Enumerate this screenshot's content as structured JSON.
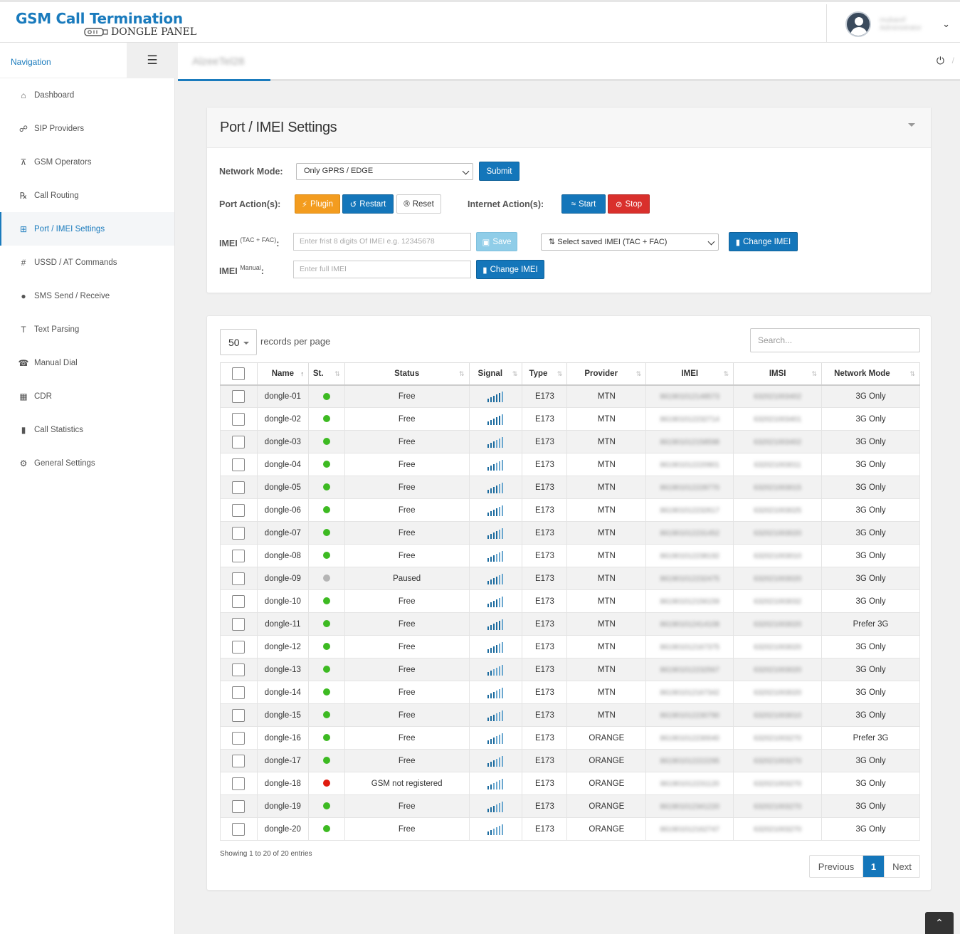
{
  "brand": {
    "title": "GSM Call Termination",
    "subtitle": "DONGLE PANEL"
  },
  "user": {
    "name": "mubaref",
    "role": "Administrator"
  },
  "nav": {
    "heading": "Navigation",
    "items": [
      {
        "label": "Dashboard",
        "icon": "home-icon",
        "glyph": "⌂"
      },
      {
        "label": "SIP Providers",
        "icon": "sip-icon",
        "glyph": "☍"
      },
      {
        "label": "GSM Operators",
        "icon": "antenna-icon",
        "glyph": "⊼"
      },
      {
        "label": "Call Routing",
        "icon": "routing-icon",
        "glyph": "℞"
      },
      {
        "label": "Port / IMEI Settings",
        "icon": "sitemap-icon",
        "glyph": "⊞"
      },
      {
        "label": "USSD / AT Commands",
        "icon": "hash-icon",
        "glyph": "#"
      },
      {
        "label": "SMS Send / Receive",
        "icon": "chat-icon",
        "glyph": "●"
      },
      {
        "label": "Text Parsing",
        "icon": "text-icon",
        "glyph": "T"
      },
      {
        "label": "Manual Dial",
        "icon": "dial-icon",
        "glyph": "☎"
      },
      {
        "label": "CDR",
        "icon": "table-icon",
        "glyph": "▦"
      },
      {
        "label": "Call Statistics",
        "icon": "chart-icon",
        "glyph": "▮"
      },
      {
        "label": "General Settings",
        "icon": "gears-icon",
        "glyph": "⚙"
      }
    ]
  },
  "tab": {
    "label": "AlzeeTel28"
  },
  "settings": {
    "title": "Port / IMEI Settings",
    "network_mode_label": "Network Mode:",
    "network_mode_value": "Only GPRS / EDGE",
    "submit_label": "Submit",
    "port_actions_label": "Port Action(s):",
    "plugin_label": "Plugin",
    "restart_label": "Restart",
    "reset_label": "Reset",
    "internet_actions_label": "Internet Action(s):",
    "start_label": "Start",
    "stop_label": "Stop",
    "imei_label": "IMEI",
    "imei_tac_sup": "(TAC + FAC)",
    "imei_manual_sup": "Manual",
    "imei_tac_placeholder": "Enter frist 8 digits Of IMEI e.g. 12345678",
    "save_label": "Save",
    "saved_imei_select": "Select saved IMEI (TAC + FAC)",
    "change_imei_label": "Change IMEI",
    "imei_full_placeholder": "Enter full IMEI"
  },
  "table": {
    "per_page": "50",
    "per_page_label": "records per page",
    "search_placeholder": "Search...",
    "columns": [
      "Name",
      "St.",
      "Status",
      "Signal",
      "Type",
      "Provider",
      "IMEI",
      "IMSI",
      "Network Mode"
    ],
    "rows": [
      {
        "name": "dongle-01",
        "st": "green",
        "status": "Free",
        "signal": 5,
        "type": "E173",
        "provider": "MTN",
        "imei": "861901012148573",
        "imsi": "632021003402",
        "mode": "3G Only"
      },
      {
        "name": "dongle-02",
        "st": "green",
        "status": "Free",
        "signal": 5,
        "type": "E173",
        "provider": "MTN",
        "imei": "861901012232714",
        "imsi": "632021003401",
        "mode": "3G Only"
      },
      {
        "name": "dongle-03",
        "st": "green",
        "status": "Free",
        "signal": 3,
        "type": "E173",
        "provider": "MTN",
        "imei": "861901012158598",
        "imsi": "632021003402",
        "mode": "3G Only"
      },
      {
        "name": "dongle-04",
        "st": "green",
        "status": "Free",
        "signal": 3,
        "type": "E173",
        "provider": "MTN",
        "imei": "861901012220901",
        "imsi": "632021003011",
        "mode": "3G Only"
      },
      {
        "name": "dongle-05",
        "st": "green",
        "status": "Free",
        "signal": 4,
        "type": "E173",
        "provider": "MTN",
        "imei": "861901012228770",
        "imsi": "632021003015",
        "mode": "3G Only"
      },
      {
        "name": "dongle-06",
        "st": "green",
        "status": "Free",
        "signal": 4,
        "type": "E173",
        "provider": "MTN",
        "imei": "861901012232617",
        "imsi": "632021003025",
        "mode": "3G Only"
      },
      {
        "name": "dongle-07",
        "st": "green",
        "status": "Free",
        "signal": 4,
        "type": "E173",
        "provider": "MTN",
        "imei": "861901012231452",
        "imsi": "632021003020",
        "mode": "3G Only"
      },
      {
        "name": "dongle-08",
        "st": "green",
        "status": "Free",
        "signal": 3,
        "type": "E173",
        "provider": "MTN",
        "imei": "861901012238192",
        "imsi": "632021003010",
        "mode": "3G Only"
      },
      {
        "name": "dongle-09",
        "st": "gray",
        "status": "Paused",
        "signal": 4,
        "type": "E173",
        "provider": "MTN",
        "imei": "861901012232475",
        "imsi": "632021003020",
        "mode": "3G Only"
      },
      {
        "name": "dongle-10",
        "st": "green",
        "status": "Free",
        "signal": 4,
        "type": "E173",
        "provider": "MTN",
        "imei": "861901012156159",
        "imsi": "632021003032",
        "mode": "3G Only"
      },
      {
        "name": "dongle-11",
        "st": "green",
        "status": "Free",
        "signal": 5,
        "type": "E173",
        "provider": "MTN",
        "imei": "861901012414108",
        "imsi": "632021003020",
        "mode": "Prefer 3G"
      },
      {
        "name": "dongle-12",
        "st": "green",
        "status": "Free",
        "signal": 4,
        "type": "E173",
        "provider": "MTN",
        "imei": "861901012167375",
        "imsi": "632021003020",
        "mode": "3G Only"
      },
      {
        "name": "dongle-13",
        "st": "green",
        "status": "Free",
        "signal": 2,
        "type": "E173",
        "provider": "MTN",
        "imei": "861901012232567",
        "imsi": "632021003020",
        "mode": "3G Only"
      },
      {
        "name": "dongle-14",
        "st": "green",
        "status": "Free",
        "signal": 3,
        "type": "E173",
        "provider": "MTN",
        "imei": "861901012167342",
        "imsi": "632021003020",
        "mode": "3G Only"
      },
      {
        "name": "dongle-15",
        "st": "green",
        "status": "Free",
        "signal": 3,
        "type": "E173",
        "provider": "MTN",
        "imei": "861901012230790",
        "imsi": "632021003010",
        "mode": "3G Only"
      },
      {
        "name": "dongle-16",
        "st": "green",
        "status": "Free",
        "signal": 3,
        "type": "E173",
        "provider": "ORANGE",
        "imei": "861901012230040",
        "imsi": "632021003270",
        "mode": "Prefer 3G"
      },
      {
        "name": "dongle-17",
        "st": "green",
        "status": "Free",
        "signal": 3,
        "type": "E173",
        "provider": "ORANGE",
        "imei": "861901012222295",
        "imsi": "632021003270",
        "mode": "3G Only"
      },
      {
        "name": "dongle-18",
        "st": "red",
        "status": "GSM not registered",
        "signal": 2,
        "type": "E173",
        "provider": "ORANGE",
        "imei": "861901012231120",
        "imsi": "632021003270",
        "mode": "3G Only"
      },
      {
        "name": "dongle-19",
        "st": "green",
        "status": "Free",
        "signal": 3,
        "type": "E173",
        "provider": "ORANGE",
        "imei": "861901012341220",
        "imsi": "632021003270",
        "mode": "3G Only"
      },
      {
        "name": "dongle-20",
        "st": "green",
        "status": "Free",
        "signal": 2,
        "type": "E173",
        "provider": "ORANGE",
        "imei": "861901012162747",
        "imsi": "632021003270",
        "mode": "3G Only"
      }
    ],
    "showing": "Showing 1 to 20 of 20 entries",
    "pager": {
      "prev": "Previous",
      "current": "1",
      "next": "Next"
    }
  },
  "colors": {
    "accent": "#1476ba",
    "green": "#3dba22",
    "red": "#e01b0e",
    "gray": "#b5b5b5"
  }
}
